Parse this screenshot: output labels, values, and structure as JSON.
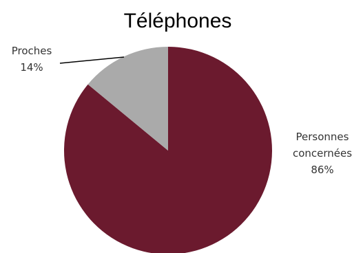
{
  "chart_data": {
    "type": "pie",
    "title": "Téléphones",
    "slices": [
      {
        "name_lines": [
          "Personnes",
          "concernées"
        ],
        "value": 86,
        "value_label": "86%",
        "color": "#6B1A2E"
      },
      {
        "name_lines": [
          "Proches"
        ],
        "value": 14,
        "value_label": "14%",
        "color": "#AAAAAA"
      }
    ],
    "start": "12 o'clock",
    "direction": "clockwise",
    "legend": "none"
  }
}
